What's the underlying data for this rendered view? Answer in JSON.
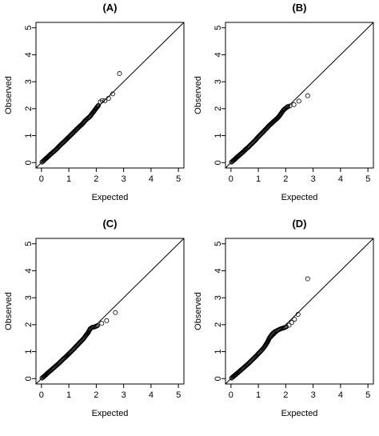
{
  "chart_data": [
    {
      "type": "scatter",
      "title": "(A)",
      "xlabel": "Expected",
      "ylabel": "Observed",
      "xlim": [
        0,
        5
      ],
      "ylim": [
        0,
        5
      ],
      "xticks": [
        "0",
        "1",
        "2",
        "3",
        "4",
        "5"
      ],
      "yticks": [
        "0",
        "1",
        "2",
        "3",
        "4",
        "5"
      ],
      "reference_line": {
        "slope": 1,
        "intercept": 0
      },
      "points": [
        [
          0.02,
          0.02
        ],
        [
          0.08,
          0.07
        ],
        [
          0.15,
          0.14
        ],
        [
          0.22,
          0.2
        ],
        [
          0.3,
          0.28
        ],
        [
          0.38,
          0.35
        ],
        [
          0.46,
          0.42
        ],
        [
          0.55,
          0.5
        ],
        [
          0.64,
          0.6
        ],
        [
          0.72,
          0.68
        ],
        [
          0.8,
          0.75
        ],
        [
          0.88,
          0.83
        ],
        [
          0.95,
          0.9
        ],
        [
          1.02,
          0.97
        ],
        [
          1.1,
          1.05
        ],
        [
          1.18,
          1.13
        ],
        [
          1.25,
          1.2
        ],
        [
          1.33,
          1.28
        ],
        [
          1.4,
          1.35
        ],
        [
          1.48,
          1.42
        ],
        [
          1.55,
          1.5
        ],
        [
          1.62,
          1.58
        ],
        [
          1.7,
          1.65
        ],
        [
          1.78,
          1.72
        ],
        [
          1.85,
          1.82
        ],
        [
          1.93,
          1.92
        ],
        [
          2.0,
          2.02
        ],
        [
          2.08,
          2.12
        ],
        [
          2.15,
          2.25
        ],
        [
          2.22,
          2.3
        ],
        [
          2.32,
          2.3
        ],
        [
          2.45,
          2.38
        ],
        [
          2.6,
          2.55
        ],
        [
          2.85,
          3.3
        ]
      ]
    },
    {
      "type": "scatter",
      "title": "(B)",
      "xlabel": "Expected",
      "ylabel": "Observed",
      "xlim": [
        0,
        5
      ],
      "ylim": [
        0,
        5
      ],
      "xticks": [
        "0",
        "1",
        "2",
        "3",
        "4",
        "5"
      ],
      "yticks": [
        "0",
        "1",
        "2",
        "3",
        "4",
        "5"
      ],
      "reference_line": {
        "slope": 1,
        "intercept": 0
      },
      "points": [
        [
          0.02,
          0.02
        ],
        [
          0.08,
          0.07
        ],
        [
          0.15,
          0.13
        ],
        [
          0.22,
          0.2
        ],
        [
          0.3,
          0.27
        ],
        [
          0.38,
          0.34
        ],
        [
          0.46,
          0.41
        ],
        [
          0.55,
          0.5
        ],
        [
          0.64,
          0.58
        ],
        [
          0.72,
          0.66
        ],
        [
          0.8,
          0.74
        ],
        [
          0.88,
          0.82
        ],
        [
          0.95,
          0.9
        ],
        [
          1.02,
          0.98
        ],
        [
          1.1,
          1.06
        ],
        [
          1.18,
          1.14
        ],
        [
          1.25,
          1.22
        ],
        [
          1.33,
          1.3
        ],
        [
          1.4,
          1.38
        ],
        [
          1.48,
          1.45
        ],
        [
          1.55,
          1.52
        ],
        [
          1.62,
          1.58
        ],
        [
          1.7,
          1.65
        ],
        [
          1.78,
          1.75
        ],
        [
          1.85,
          1.85
        ],
        [
          1.92,
          1.95
        ],
        [
          2.0,
          2.02
        ],
        [
          2.08,
          2.08
        ],
        [
          2.15,
          2.1
        ],
        [
          2.3,
          2.15
        ],
        [
          2.48,
          2.28
        ],
        [
          2.8,
          2.48
        ]
      ]
    },
    {
      "type": "scatter",
      "title": "(C)",
      "xlabel": "Expected",
      "ylabel": "Observed",
      "xlim": [
        0,
        5
      ],
      "ylim": [
        0,
        5
      ],
      "xticks": [
        "0",
        "1",
        "2",
        "3",
        "4",
        "5"
      ],
      "yticks": [
        "0",
        "1",
        "2",
        "3",
        "4",
        "5"
      ],
      "reference_line": {
        "slope": 1,
        "intercept": 0
      },
      "points": [
        [
          0.02,
          0.02
        ],
        [
          0.08,
          0.07
        ],
        [
          0.15,
          0.13
        ],
        [
          0.22,
          0.2
        ],
        [
          0.3,
          0.27
        ],
        [
          0.38,
          0.34
        ],
        [
          0.46,
          0.41
        ],
        [
          0.55,
          0.49
        ],
        [
          0.64,
          0.57
        ],
        [
          0.72,
          0.65
        ],
        [
          0.8,
          0.73
        ],
        [
          0.88,
          0.8
        ],
        [
          0.95,
          0.87
        ],
        [
          1.02,
          0.94
        ],
        [
          1.1,
          1.02
        ],
        [
          1.18,
          1.1
        ],
        [
          1.25,
          1.18
        ],
        [
          1.33,
          1.26
        ],
        [
          1.4,
          1.34
        ],
        [
          1.48,
          1.42
        ],
        [
          1.55,
          1.5
        ],
        [
          1.62,
          1.6
        ],
        [
          1.7,
          1.7
        ],
        [
          1.78,
          1.85
        ],
        [
          1.85,
          1.9
        ],
        [
          1.95,
          1.92
        ],
        [
          2.05,
          1.97
        ],
        [
          2.2,
          2.05
        ],
        [
          2.38,
          2.15
        ],
        [
          2.7,
          2.45
        ]
      ]
    },
    {
      "type": "scatter",
      "title": "(D)",
      "xlabel": "Expected",
      "ylabel": "Observed",
      "xlim": [
        0,
        5
      ],
      "ylim": [
        0,
        5
      ],
      "xticks": [
        "0",
        "1",
        "2",
        "3",
        "4",
        "5"
      ],
      "yticks": [
        "0",
        "1",
        "2",
        "3",
        "4",
        "5"
      ],
      "reference_line": {
        "slope": 1,
        "intercept": 0
      },
      "points": [
        [
          0.02,
          0.02
        ],
        [
          0.08,
          0.07
        ],
        [
          0.15,
          0.13
        ],
        [
          0.22,
          0.19
        ],
        [
          0.3,
          0.26
        ],
        [
          0.38,
          0.33
        ],
        [
          0.46,
          0.4
        ],
        [
          0.55,
          0.48
        ],
        [
          0.64,
          0.56
        ],
        [
          0.72,
          0.64
        ],
        [
          0.8,
          0.72
        ],
        [
          0.88,
          0.8
        ],
        [
          0.95,
          0.87
        ],
        [
          1.02,
          0.95
        ],
        [
          1.1,
          1.03
        ],
        [
          1.18,
          1.12
        ],
        [
          1.25,
          1.22
        ],
        [
          1.33,
          1.35
        ],
        [
          1.4,
          1.5
        ],
        [
          1.48,
          1.62
        ],
        [
          1.55,
          1.7
        ],
        [
          1.62,
          1.75
        ],
        [
          1.72,
          1.8
        ],
        [
          1.82,
          1.85
        ],
        [
          1.92,
          1.88
        ],
        [
          2.02,
          1.92
        ],
        [
          2.12,
          1.98
        ],
        [
          2.22,
          2.08
        ],
        [
          2.32,
          2.2
        ],
        [
          2.45,
          2.38
        ],
        [
          2.8,
          3.7
        ]
      ]
    }
  ]
}
